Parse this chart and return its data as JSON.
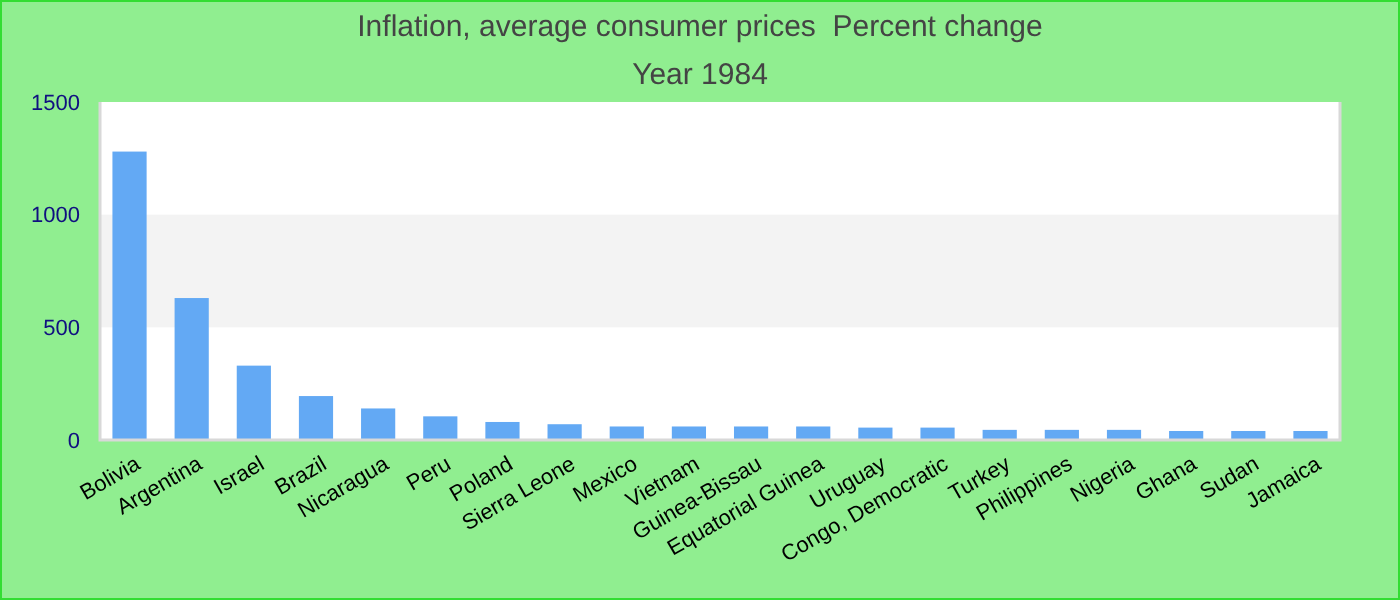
{
  "chart_data": {
    "type": "bar",
    "title": "Inflation, average consumer prices  Percent change",
    "subtitle": "Year 1984",
    "categories": [
      "Bolivia",
      "Argentina",
      "Israel",
      "Brazil",
      "Nicaragua",
      "Peru",
      "Poland",
      "Sierra Leone",
      "Mexico",
      "Vietnam",
      "Guinea-Bissau",
      "Equatorial Guinea",
      "Uruguay",
      "Congo, Democratic",
      "Turkey",
      "Philippines",
      "Nigeria",
      "Ghana",
      "Sudan",
      "Jamaica"
    ],
    "values": [
      1280,
      630,
      330,
      195,
      140,
      105,
      80,
      70,
      60,
      60,
      60,
      60,
      55,
      55,
      45,
      45,
      45,
      40,
      40,
      40
    ],
    "color": "#63a9f4",
    "ylim": [
      0,
      1500
    ],
    "yticks": [
      0,
      500,
      1000,
      1500
    ],
    "bands": [
      {
        "axis": "y",
        "from": 500,
        "to": 1000,
        "color": "#f3f3f3"
      }
    ]
  }
}
